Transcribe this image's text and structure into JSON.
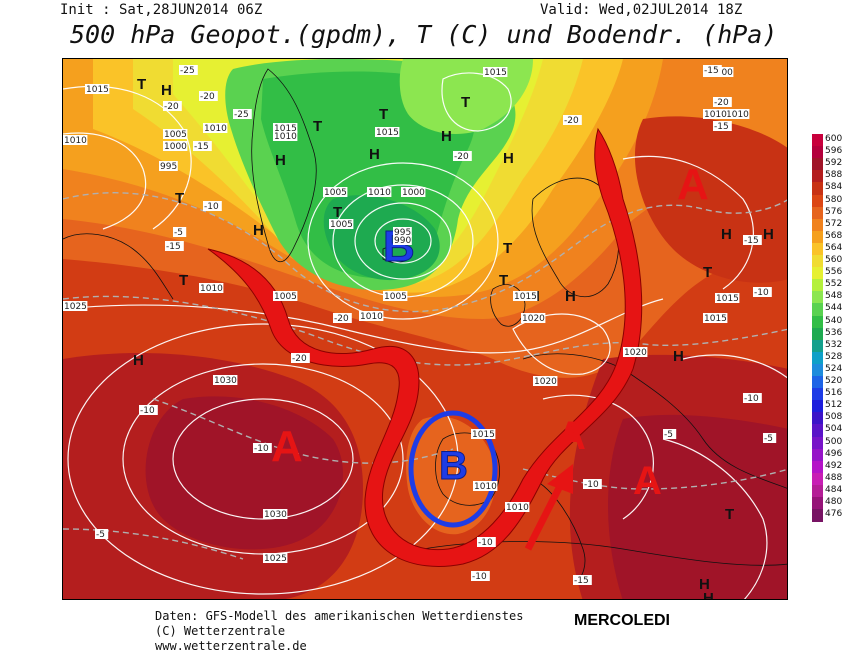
{
  "header": {
    "init": "Init : Sat,28JUN2014 06Z",
    "valid": "Valid: Wed,02JUL2014 18Z",
    "title": "500 hPa Geopot.(gpdm), T (C) und Bodendr. (hPa)"
  },
  "footer": {
    "line1": "Daten: GFS-Modell des amerikanischen Wetterdienstes",
    "line2": "(C) Wetterzentrale",
    "line3": "www.wetterzentrale.de",
    "day": "MERCOLEDI"
  },
  "legend": {
    "levels": [
      "600",
      "596",
      "592",
      "588",
      "584",
      "580",
      "576",
      "572",
      "568",
      "564",
      "560",
      "556",
      "552",
      "548",
      "544",
      "540",
      "536",
      "532",
      "528",
      "524",
      "520",
      "516",
      "512",
      "508",
      "504",
      "500",
      "496",
      "492",
      "488",
      "484",
      "480",
      "476"
    ],
    "colors": [
      "#c8003c",
      "#b4003c",
      "#a01428",
      "#b41e1e",
      "#c83214",
      "#dc4614",
      "#e6641e",
      "#f0821e",
      "#f5a01e",
      "#fac328",
      "#f0dc32",
      "#e6f032",
      "#b4f03c",
      "#8ce650",
      "#5ad250",
      "#32be46",
      "#1eaa50",
      "#14a08c",
      "#0fa0c8",
      "#1e8cdc",
      "#1e64e6",
      "#1e3ce6",
      "#1e1edc",
      "#3c14c8",
      "#5a14c8",
      "#7814c8",
      "#9614c8",
      "#b414c8",
      "#c81eb4",
      "#b41e96",
      "#961478",
      "#781464"
    ]
  },
  "map_labels": {
    "pressure_centers": [
      {
        "label": "T",
        "kind": "low"
      },
      {
        "label": "H",
        "kind": "high"
      },
      {
        "label": "T",
        "kind": "low"
      },
      {
        "label": "H",
        "kind": "high"
      },
      {
        "label": "T",
        "kind": "low"
      },
      {
        "label": "H",
        "kind": "high"
      },
      {
        "label": "T",
        "kind": "low"
      },
      {
        "label": "H",
        "kind": "high"
      },
      {
        "label": "H",
        "kind": "high"
      },
      {
        "label": "T",
        "kind": "low"
      },
      {
        "label": "H",
        "kind": "high"
      },
      {
        "label": "T",
        "kind": "low"
      },
      {
        "label": "T",
        "kind": "low"
      },
      {
        "label": "H",
        "kind": "high"
      },
      {
        "label": "H",
        "kind": "high"
      },
      {
        "label": "T",
        "kind": "low"
      },
      {
        "label": "H",
        "kind": "high"
      },
      {
        "label": "H",
        "kind": "high"
      },
      {
        "label": "T",
        "kind": "low"
      },
      {
        "label": "H",
        "kind": "high"
      },
      {
        "label": "T",
        "kind": "low"
      },
      {
        "label": "T",
        "kind": "low"
      },
      {
        "label": "H",
        "kind": "high"
      },
      {
        "label": "H",
        "kind": "high"
      },
      {
        "label": "T",
        "kind": "low"
      },
      {
        "label": "H",
        "kind": "high"
      },
      {
        "label": "H",
        "kind": "high"
      }
    ],
    "isobar_values": [
      "1015",
      "1000",
      "1015",
      "1010",
      "1010",
      "1005",
      "1000",
      "995",
      "1010",
      "1010",
      "1015",
      "1010",
      "1005",
      "1000",
      "995",
      "990",
      "1005",
      "1010",
      "1005",
      "1010",
      "1015",
      "1020",
      "1020",
      "1020",
      "1010",
      "1025",
      "1030",
      "1015",
      "1015",
      "1030",
      "1025",
      "1010",
      "1015",
      "1010",
      "1015",
      "1000",
      "1005"
    ],
    "temp_values": [
      "-25",
      "-20",
      "-25",
      "-15",
      "-20",
      "-20",
      "-10",
      "-5",
      "-15",
      "-20",
      "-15",
      "-20",
      "-15",
      "-15",
      "-20",
      "-10",
      "-10",
      "-5",
      "-10",
      "-10",
      "-5",
      "-10",
      "-10",
      "-10",
      "-5",
      "-15",
      "-20"
    ],
    "annotations": {
      "troughs": [
        "B",
        "B"
      ],
      "ridges": [
        "A",
        "A",
        "A",
        "A"
      ]
    }
  }
}
